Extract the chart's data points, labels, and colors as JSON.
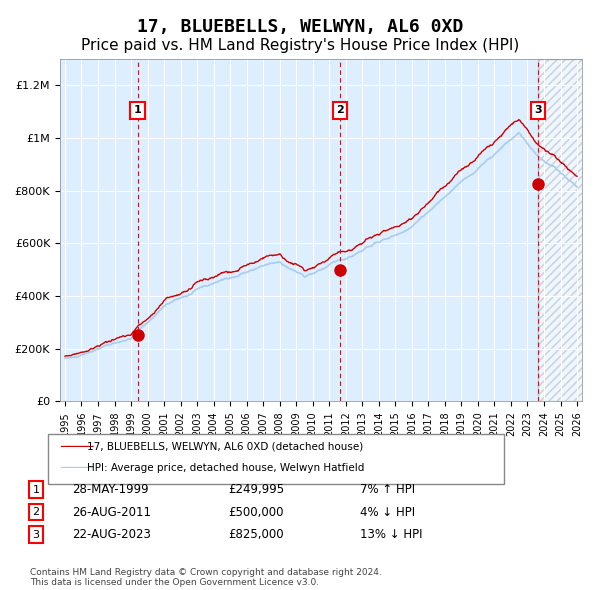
{
  "title": "17, BLUEBELLS, WELWYN, AL6 0XD",
  "subtitle": "Price paid vs. HM Land Registry's House Price Index (HPI)",
  "title_fontsize": 13,
  "subtitle_fontsize": 11,
  "background_color": "#ffffff",
  "plot_bg_color": "#ddeeff",
  "hatch_color": "#cccccc",
  "grid_color": "#ffffff",
  "red_line_color": "#cc0000",
  "blue_line_color": "#aaccee",
  "dashed_line_color": "#ff0000",
  "ylim": [
    0,
    1300000
  ],
  "yticks": [
    0,
    200000,
    400000,
    600000,
    800000,
    1000000,
    1200000
  ],
  "ytick_labels": [
    "£0",
    "£200K",
    "£400K",
    "£600K",
    "£800K",
    "£1M",
    "£1.2M"
  ],
  "x_start_year": 1995,
  "x_end_year": 2026,
  "sale_events": [
    {
      "label": "1",
      "year": 1999.4,
      "price": 249995,
      "date": "28-MAY-1999",
      "price_str": "£249,995",
      "hpi_pct": "7%",
      "hpi_dir": "↑"
    },
    {
      "label": "2",
      "year": 2011.65,
      "price": 500000,
      "date": "26-AUG-2011",
      "price_str": "£500,000",
      "hpi_pct": "4%",
      "hpi_dir": "↓"
    },
    {
      "label": "3",
      "year": 2023.65,
      "price": 825000,
      "date": "22-AUG-2023",
      "price_str": "£825,000",
      "hpi_pct": "13%",
      "hpi_dir": "↓"
    }
  ],
  "legend_line1": "17, BLUEBELLS, WELWYN, AL6 0XD (detached house)",
  "legend_line2": "HPI: Average price, detached house, Welwyn Hatfield",
  "footer_line1": "Contains HM Land Registry data © Crown copyright and database right 2024.",
  "footer_line2": "This data is licensed under the Open Government Licence v3.0."
}
